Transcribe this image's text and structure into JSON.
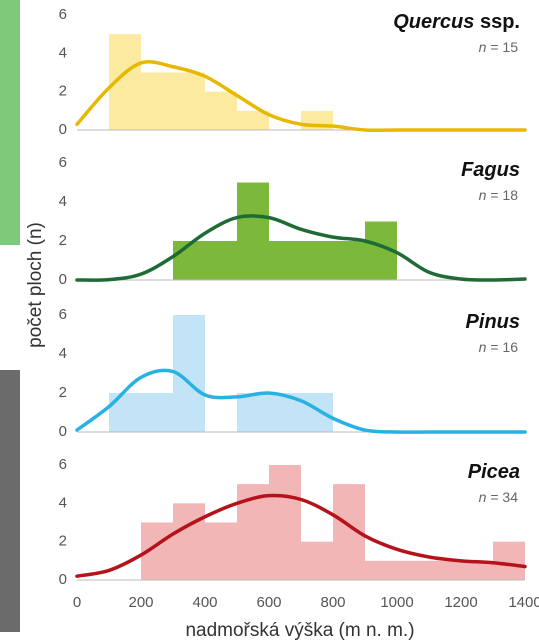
{
  "chart_data": [
    {
      "type": "histogram",
      "title_species": "Quercus",
      "title_suffix": "ssp.",
      "count_symbol": "n",
      "count_text": "= 15",
      "ylabel": "počet ploch (n)",
      "bins": [
        100,
        200,
        300,
        400,
        500,
        600,
        700,
        800,
        900
      ],
      "values": [
        5,
        3,
        3,
        2,
        1,
        0,
        1,
        0
      ],
      "color": "#fbeaa0",
      "xlim": [
        0,
        1400
      ],
      "ylim": [
        0,
        6
      ],
      "yticks": [
        0,
        2,
        4,
        6
      ],
      "density": {
        "color": "#e8b800",
        "x": [
          0,
          100,
          200,
          300,
          400,
          500,
          600,
          700,
          800,
          900,
          1000,
          1100,
          1200,
          1300,
          1400
        ],
        "values": [
          0.3,
          2.2,
          3.5,
          3.3,
          2.8,
          1.8,
          0.8,
          0.3,
          0.2,
          0,
          0,
          0,
          0,
          0,
          0
        ]
      }
    },
    {
      "type": "histogram",
      "title_species": "Fagus",
      "count_symbol": "n",
      "count_text": "= 18",
      "bins": [
        300,
        400,
        500,
        600,
        700,
        800,
        900,
        1000
      ],
      "values": [
        2,
        2,
        5,
        2,
        2,
        2,
        3
      ],
      "color": "#7cb83a",
      "xlim": [
        0,
        1400
      ],
      "ylim": [
        0,
        6
      ],
      "yticks": [
        0,
        2,
        4,
        6
      ],
      "density": {
        "color": "#1f6b35",
        "x": [
          0,
          100,
          200,
          300,
          400,
          500,
          600,
          700,
          800,
          900,
          1000,
          1100,
          1200,
          1300,
          1400
        ],
        "values": [
          0,
          0.02,
          0.3,
          1.2,
          2.4,
          3.2,
          3.2,
          2.6,
          2.2,
          2.0,
          1.4,
          0.4,
          0.05,
          0,
          0.05
        ]
      }
    },
    {
      "type": "histogram",
      "title_species": "Pinus",
      "count_symbol": "n",
      "count_text": "= 16",
      "bins": [
        100,
        200,
        300,
        400,
        500,
        600,
        700,
        800
      ],
      "values": [
        2,
        2,
        6,
        0,
        2,
        2,
        2
      ],
      "color": "#c3e3f7",
      "xlim": [
        0,
        1400
      ],
      "ylim": [
        0,
        6
      ],
      "yticks": [
        0,
        2,
        4,
        6
      ],
      "density": {
        "color": "#27b2e3",
        "x": [
          0,
          100,
          200,
          300,
          400,
          500,
          600,
          700,
          800,
          900,
          1000,
          1100,
          1200,
          1300,
          1400
        ],
        "values": [
          0.1,
          1.3,
          2.8,
          3.1,
          1.9,
          1.8,
          2.0,
          1.6,
          0.7,
          0.1,
          0,
          0,
          0,
          0,
          0
        ]
      }
    },
    {
      "type": "histogram",
      "title_species": "Picea",
      "count_symbol": "n",
      "count_text": "= 34",
      "xlabel": "nadmořská výška (m n. m.)",
      "bins": [
        200,
        300,
        400,
        500,
        600,
        700,
        800,
        900,
        1000,
        1100,
        1200,
        1300,
        1400
      ],
      "values": [
        3,
        4,
        3,
        5,
        6,
        2,
        5,
        1,
        1,
        1,
        1,
        2
      ],
      "color": "#f3b6b6",
      "xlim": [
        0,
        1400
      ],
      "ylim": [
        0,
        6
      ],
      "yticks": [
        0,
        2,
        4,
        6
      ],
      "xticks": [
        0,
        200,
        400,
        600,
        800,
        1000,
        1200,
        1400
      ],
      "density": {
        "color": "#b5121b",
        "x": [
          0,
          100,
          200,
          300,
          400,
          500,
          600,
          700,
          800,
          900,
          1000,
          1100,
          1200,
          1300,
          1400
        ],
        "values": [
          0.2,
          0.5,
          1.3,
          2.4,
          3.3,
          4.0,
          4.4,
          4.2,
          3.4,
          2.3,
          1.6,
          1.2,
          1.0,
          0.9,
          0.7
        ]
      }
    }
  ]
}
